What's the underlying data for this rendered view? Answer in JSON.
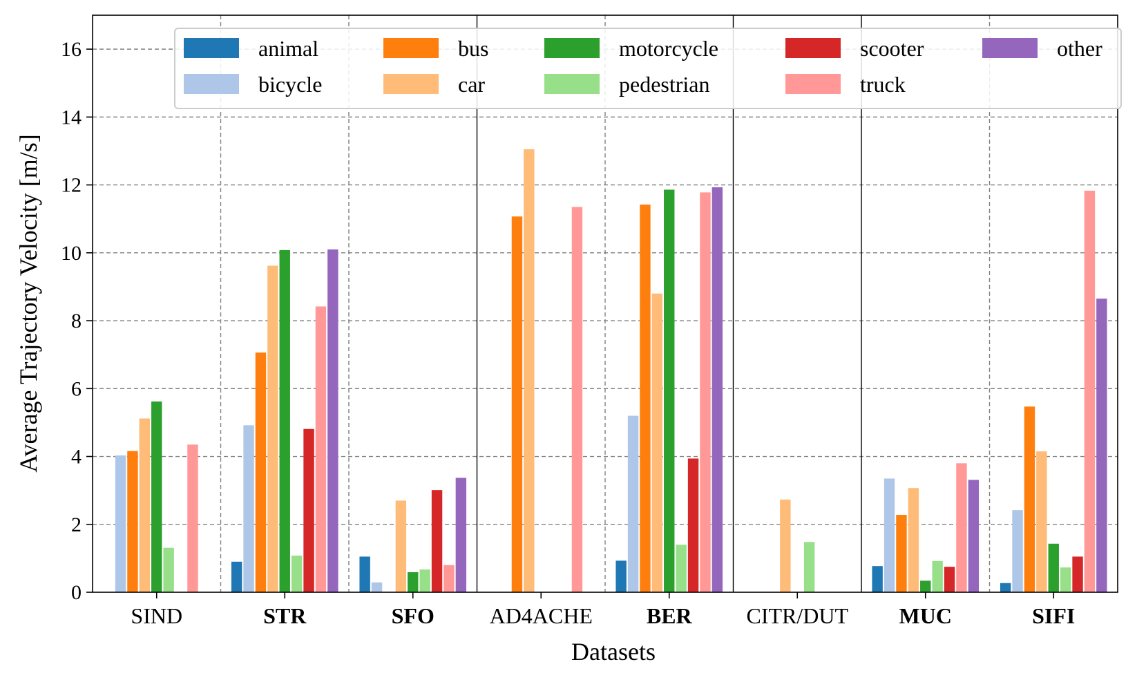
{
  "chart_data": {
    "type": "bar",
    "title": "",
    "xlabel": "Datasets",
    "ylabel": "Average Trajectory Velocity [m/s]",
    "ylim": [
      0,
      17
    ],
    "yticks": [
      "0",
      "2",
      "4",
      "6",
      "8",
      "10",
      "12",
      "14",
      "16"
    ],
    "ytick_values": [
      0,
      2,
      4,
      6,
      8,
      10,
      12,
      14,
      16
    ],
    "grid": true,
    "legend_position": "top",
    "categories": [
      "SIND",
      "STR",
      "SFO",
      "AD4ACHE",
      "BER",
      "CITR/DUT",
      "MUC",
      "SIFI"
    ],
    "bold_categories": [
      "STR",
      "SFO",
      "BER",
      "MUC",
      "SIFI"
    ],
    "solid_separators_after": [
      "SFO",
      "BER",
      "CITR/DUT"
    ],
    "series": [
      {
        "name": "animal",
        "color": "#1f77b4",
        "values": [
          null,
          0.9,
          1.05,
          null,
          0.93,
          null,
          0.77,
          0.27
        ]
      },
      {
        "name": "bicycle",
        "color": "#aec7e8",
        "values": [
          4.03,
          4.92,
          0.29,
          null,
          5.2,
          null,
          3.35,
          2.42
        ]
      },
      {
        "name": "bus",
        "color": "#ff7f0e",
        "values": [
          4.16,
          7.06,
          null,
          11.07,
          11.42,
          null,
          2.28,
          5.47
        ]
      },
      {
        "name": "car",
        "color": "#ffbb78",
        "values": [
          5.12,
          9.62,
          2.7,
          13.05,
          8.8,
          2.73,
          3.07,
          4.15
        ]
      },
      {
        "name": "motorcycle",
        "color": "#2ca02c",
        "values": [
          5.62,
          10.08,
          0.59,
          null,
          11.86,
          null,
          0.34,
          1.43
        ]
      },
      {
        "name": "pedestrian",
        "color": "#98df8a",
        "values": [
          1.31,
          1.08,
          0.67,
          null,
          1.4,
          1.48,
          0.92,
          0.73
        ]
      },
      {
        "name": "scooter",
        "color": "#d62728",
        "values": [
          null,
          4.81,
          3.01,
          null,
          3.94,
          null,
          0.75,
          1.05
        ]
      },
      {
        "name": "truck",
        "color": "#ff9896",
        "values": [
          4.35,
          8.42,
          0.8,
          11.35,
          11.78,
          null,
          3.8,
          11.83
        ]
      },
      {
        "name": "other",
        "color": "#9467bd",
        "values": [
          null,
          10.1,
          3.37,
          null,
          11.93,
          null,
          3.31,
          8.65
        ]
      }
    ]
  }
}
